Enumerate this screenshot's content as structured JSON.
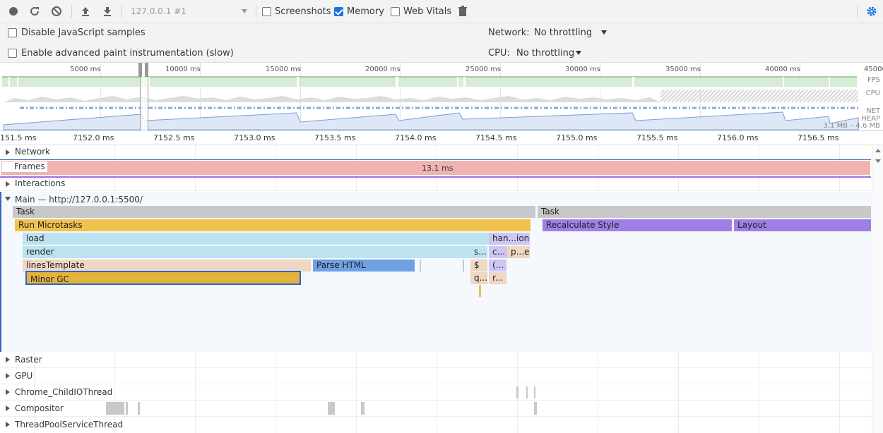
{
  "toolbar": {
    "target": "127.0.0.1 #1",
    "screenshots_label": "Screenshots",
    "screenshots_checked": false,
    "memory_label": "Memory",
    "memory_checked": true,
    "webvitals_label": "Web Vitals",
    "webvitals_checked": false,
    "icons": [
      "record-icon",
      "reload-icon",
      "clear-icon",
      "upload-icon",
      "download-icon",
      "trash-icon",
      "gear-icon"
    ],
    "accent": "#1a73e8"
  },
  "settings": {
    "disable_js_samples": "Disable JavaScript samples",
    "advanced_paint": "Enable advanced paint instrumentation (slow)",
    "network_label": "Network:",
    "network_value": "No throttling",
    "cpu_label": "CPU:",
    "cpu_value": "No throttling"
  },
  "overview": {
    "ticks": [
      "5000 ms",
      "10000 ms",
      "15000 ms",
      "20000 ms",
      "25000 ms",
      "30000 ms",
      "35000 ms",
      "40000 ms",
      "45000"
    ],
    "lanes": [
      "FPS",
      "CPU",
      "NET",
      "HEAP"
    ],
    "heap_range": "3.1 MB – 4.6 MB"
  },
  "ruler": {
    "ticks": [
      "151.5 ms",
      "7152.0 ms",
      "7152.5 ms",
      "7153.0 ms",
      "7153.5 ms",
      "7154.0 ms",
      "7154.5 ms",
      "7155.0 ms",
      "7155.5 ms",
      "7156.0 ms",
      "7156.5 ms"
    ]
  },
  "tracks": {
    "network": "Network",
    "frames": "Frames",
    "frames_duration": "13.1 ms",
    "interactions": "Interactions",
    "main": "Main — http://127.0.0.1:5500/",
    "raster": "Raster",
    "gpu": "GPU",
    "child_io": "Chrome_ChildIOThread",
    "compositor": "Compositor",
    "threadpool": "ThreadPoolServiceThread"
  },
  "flame": {
    "task1": "Task",
    "task2": "Task",
    "run_microtasks": "Run Microtasks",
    "recalc_style": "Recalculate Style",
    "layout": "Layout",
    "load": "load",
    "handle": "han...ion",
    "render": "render",
    "s_short": "s...",
    "c_short": "c...",
    "pe_short": "p...e",
    "lines_template": "linesTemplate",
    "parse_html": "Parse HTML",
    "dollar": "$",
    "paren": "(...",
    "minor_gc": "Minor GC",
    "q_short": "q...",
    "r_short": "r..."
  }
}
